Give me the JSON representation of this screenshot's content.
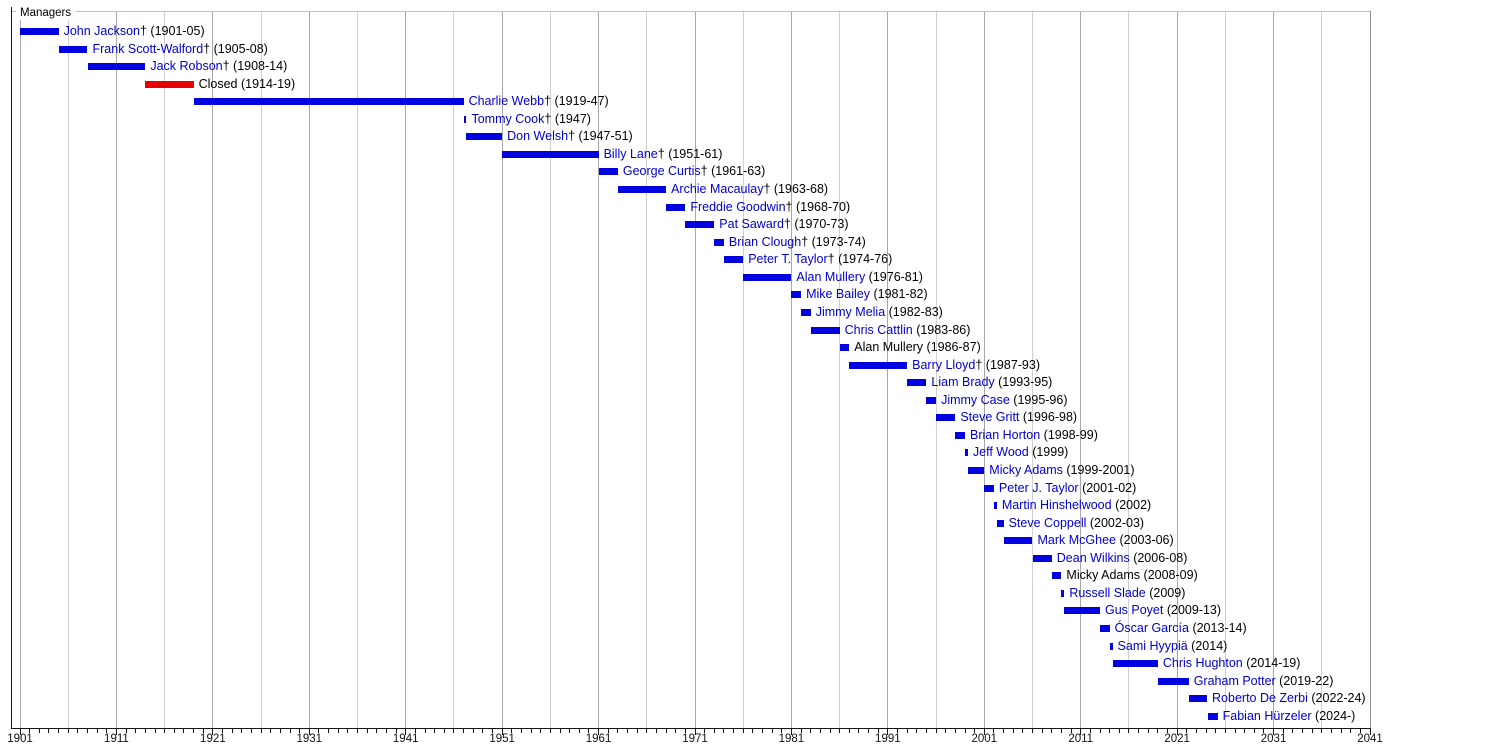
{
  "chart_data": {
    "type": "gantt-timeline",
    "title": "Managers",
    "x_axis": {
      "min": 1901,
      "max": 2041,
      "tick_step": 1,
      "grid_step": 5,
      "label_step": 10,
      "labels": [
        "1901",
        "1911",
        "1921",
        "1931",
        "1941",
        "1951",
        "1961",
        "1971",
        "1981",
        "1991",
        "2001",
        "2011",
        "2021",
        "2031",
        "2041"
      ]
    },
    "legend": "none",
    "grid": "vertical, every 5 years (darker every 10)",
    "colors": {
      "blue": "#0202e0",
      "red": "#e60202",
      "link_text": "#0000cc",
      "plain_text": "#000000"
    },
    "rows": [
      {
        "name": "John Jackson",
        "suffix": "† (1901-05)",
        "start": 1901,
        "end": 1905,
        "bar": "blue",
        "link": true
      },
      {
        "name": "Frank Scott-Walford",
        "suffix": "† (1905-08)",
        "start": 1905,
        "end": 1908,
        "bar": "blue",
        "link": true
      },
      {
        "name": "Jack Robson",
        "suffix": "† (1908-14)",
        "start": 1908,
        "end": 1914,
        "bar": "blue",
        "link": true
      },
      {
        "name": "Closed",
        "suffix": " (1914-19)",
        "start": 1914,
        "end": 1919,
        "bar": "red",
        "link": false
      },
      {
        "name": "Charlie Webb",
        "suffix": "† (1919-47)",
        "start": 1919,
        "end": 1947,
        "bar": "blue",
        "link": true
      },
      {
        "name": "Tommy Cook",
        "suffix": "† (1947)",
        "start": 1947,
        "end": 1947.3,
        "bar": "blue",
        "link": true
      },
      {
        "name": "Don Welsh",
        "suffix": "† (1947-51)",
        "start": 1947.3,
        "end": 1951,
        "bar": "blue",
        "link": true
      },
      {
        "name": "Billy Lane",
        "suffix": "† (1951-61)",
        "start": 1951,
        "end": 1961,
        "bar": "blue",
        "link": true
      },
      {
        "name": "George Curtis",
        "suffix": "† (1961-63)",
        "start": 1961,
        "end": 1963,
        "bar": "blue",
        "link": true
      },
      {
        "name": "Archie Macaulay",
        "suffix": "† (1963-68)",
        "start": 1963,
        "end": 1968,
        "bar": "blue",
        "link": true
      },
      {
        "name": "Freddie Goodwin",
        "suffix": "† (1968-70)",
        "start": 1968,
        "end": 1970,
        "bar": "blue",
        "link": true
      },
      {
        "name": "Pat Saward",
        "suffix": "† (1970-73)",
        "start": 1970,
        "end": 1973,
        "bar": "blue",
        "link": true
      },
      {
        "name": "Brian Clough",
        "suffix": "† (1973-74)",
        "start": 1973,
        "end": 1974,
        "bar": "blue",
        "link": true
      },
      {
        "name": "Peter T. Taylor",
        "suffix": "† (1974-76)",
        "start": 1974,
        "end": 1976,
        "bar": "blue",
        "link": true
      },
      {
        "name": "Alan Mullery",
        "suffix": " (1976-81)",
        "start": 1976,
        "end": 1981,
        "bar": "blue",
        "link": true
      },
      {
        "name": "Mike Bailey",
        "suffix": " (1981-82)",
        "start": 1981,
        "end": 1982,
        "bar": "blue",
        "link": true
      },
      {
        "name": "Jimmy Melia",
        "suffix": " (1982-83)",
        "start": 1982,
        "end": 1983,
        "bar": "blue",
        "link": true
      },
      {
        "name": "Chris Cattlin",
        "suffix": " (1983-86)",
        "start": 1983,
        "end": 1986,
        "bar": "blue",
        "link": true
      },
      {
        "name": "Alan Mullery",
        "suffix": " (1986-87)",
        "start": 1986,
        "end": 1987,
        "bar": "blue",
        "link": false
      },
      {
        "name": "Barry Lloyd",
        "suffix": "† (1987-93)",
        "start": 1987,
        "end": 1993,
        "bar": "blue",
        "link": true
      },
      {
        "name": "Liam Brady",
        "suffix": " (1993-95)",
        "start": 1993,
        "end": 1995,
        "bar": "blue",
        "link": true
      },
      {
        "name": "Jimmy Case",
        "suffix": " (1995-96)",
        "start": 1995,
        "end": 1996,
        "bar": "blue",
        "link": true
      },
      {
        "name": "Steve Gritt",
        "suffix": " (1996-98)",
        "start": 1996,
        "end": 1998,
        "bar": "blue",
        "link": true
      },
      {
        "name": "Brian Horton",
        "suffix": " (1998-99)",
        "start": 1998,
        "end": 1999,
        "bar": "blue",
        "link": true
      },
      {
        "name": "Jeff Wood",
        "suffix": " (1999)",
        "start": 1999,
        "end": 1999.3,
        "bar": "blue",
        "link": true
      },
      {
        "name": "Micky Adams",
        "suffix": " (1999-2001)",
        "start": 1999.3,
        "end": 2001,
        "bar": "blue",
        "link": true
      },
      {
        "name": "Peter J. Taylor",
        "suffix": " (2001-02)",
        "start": 2001,
        "end": 2002,
        "bar": "blue",
        "link": true
      },
      {
        "name": "Martin Hinshelwood",
        "suffix": " (2002)",
        "start": 2002,
        "end": 2002.3,
        "bar": "blue",
        "link": true
      },
      {
        "name": "Steve Coppell",
        "suffix": " (2002-03)",
        "start": 2002.3,
        "end": 2003,
        "bar": "blue",
        "link": true
      },
      {
        "name": "Mark McGhee",
        "suffix": " (2003-06)",
        "start": 2003,
        "end": 2006,
        "bar": "blue",
        "link": true
      },
      {
        "name": "Dean Wilkins",
        "suffix": " (2006-08)",
        "start": 2006,
        "end": 2008,
        "bar": "blue",
        "link": true
      },
      {
        "name": "Micky Adams",
        "suffix": " (2008-09)",
        "start": 2008,
        "end": 2009,
        "bar": "blue",
        "link": false
      },
      {
        "name": "Russell Slade",
        "suffix": " (2009)",
        "start": 2009,
        "end": 2009.3,
        "bar": "blue",
        "link": true
      },
      {
        "name": "Gus Poyet",
        "suffix": " (2009-13)",
        "start": 2009.3,
        "end": 2013,
        "bar": "blue",
        "link": true
      },
      {
        "name": "Óscar García",
        "suffix": " (2013-14)",
        "start": 2013,
        "end": 2014,
        "bar": "blue",
        "link": true
      },
      {
        "name": "Sami Hyypiä",
        "suffix": " (2014)",
        "start": 2014,
        "end": 2014.3,
        "bar": "blue",
        "link": true
      },
      {
        "name": "Chris Hughton",
        "suffix": " (2014-19)",
        "start": 2014.3,
        "end": 2019,
        "bar": "blue",
        "link": true
      },
      {
        "name": "Graham Potter",
        "suffix": " (2019-22)",
        "start": 2019,
        "end": 2022.2,
        "bar": "blue",
        "link": true
      },
      {
        "name": "Roberto De Zerbi",
        "suffix": " (2022-24)",
        "start": 2022.2,
        "end": 2024.1,
        "bar": "blue",
        "link": true
      },
      {
        "name": "Fabian Hürzeler",
        "suffix": " (2024-)",
        "start": 2024.15,
        "end": 2025.2,
        "bar": "blue",
        "link": true
      }
    ]
  }
}
